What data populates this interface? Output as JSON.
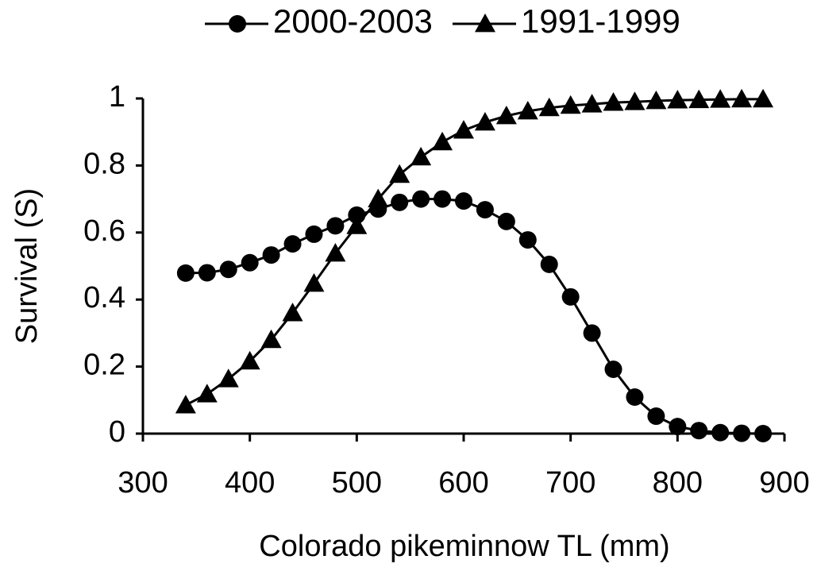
{
  "chart_data": {
    "type": "line",
    "legend": "top",
    "x_label": "Colorado pikeminnow TL (mm)",
    "y_label": "Survival (S)",
    "x": [
      340,
      360,
      380,
      400,
      420,
      440,
      460,
      480,
      500,
      520,
      540,
      560,
      580,
      600,
      620,
      640,
      660,
      680,
      700,
      720,
      740,
      760,
      780,
      800,
      820,
      840,
      860,
      880
    ],
    "series": [
      {
        "name": "2000-2003",
        "color": "#000000",
        "marker": "circle",
        "values": [
          0.479,
          0.48,
          0.49,
          0.51,
          0.533,
          0.566,
          0.595,
          0.62,
          0.652,
          0.67,
          0.69,
          0.7,
          0.7,
          0.694,
          0.668,
          0.633,
          0.578,
          0.505,
          0.408,
          0.3,
          0.192,
          0.109,
          0.052,
          0.021,
          0.009,
          0.003,
          0.001,
          0.0
        ]
      },
      {
        "name": "1991-1999",
        "color": "#000000",
        "marker": "triangle",
        "values": [
          0.085,
          0.118,
          0.163,
          0.216,
          0.28,
          0.36,
          0.448,
          0.538,
          0.62,
          0.7,
          0.773,
          0.825,
          0.87,
          0.905,
          0.929,
          0.948,
          0.962,
          0.972,
          0.979,
          0.983,
          0.988,
          0.99,
          0.993,
          0.995,
          0.996,
          0.997,
          0.998,
          0.998
        ]
      }
    ],
    "xlim": [
      300,
      900
    ],
    "xticks": [
      300,
      400,
      500,
      600,
      700,
      800,
      900
    ],
    "ylim": [
      0,
      1
    ],
    "yticks": [
      0,
      0.2,
      0.4,
      0.6,
      0.8,
      1
    ]
  }
}
